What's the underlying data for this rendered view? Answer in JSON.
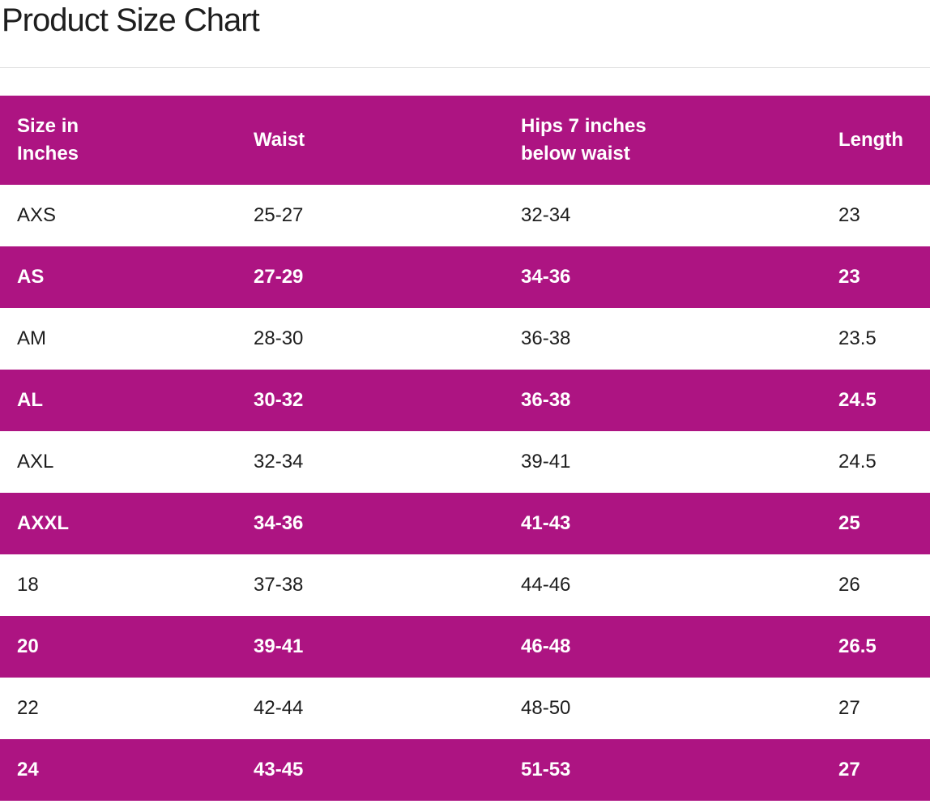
{
  "page": {
    "title": "Product Size Chart"
  },
  "table": {
    "headers": {
      "size": "Size in Inches",
      "waist": "Waist",
      "hips": "Hips 7 inches below waist",
      "length": "Length"
    },
    "rows": [
      {
        "size": "AXS",
        "waist": "25-27",
        "hips": "32-34",
        "length": "23"
      },
      {
        "size": "AS",
        "waist": "27-29",
        "hips": "34-36",
        "length": "23"
      },
      {
        "size": "AM",
        "waist": "28-30",
        "hips": "36-38",
        "length": "23.5"
      },
      {
        "size": "AL",
        "waist": "30-32",
        "hips": "36-38",
        "length": "24.5"
      },
      {
        "size": "AXL",
        "waist": "32-34",
        "hips": "39-41",
        "length": "24.5"
      },
      {
        "size": "AXXL",
        "waist": "34-36",
        "hips": "41-43",
        "length": "25"
      },
      {
        "size": "18",
        "waist": "37-38",
        "hips": "44-46",
        "length": "26"
      },
      {
        "size": "20",
        "waist": "39-41",
        "hips": "46-48",
        "length": "26.5"
      },
      {
        "size": "22",
        "waist": "42-44",
        "hips": "48-50",
        "length": "27"
      },
      {
        "size": "24",
        "waist": "43-45",
        "hips": "51-53",
        "length": "27"
      }
    ]
  },
  "colors": {
    "accent": "#ad1482",
    "text": "#1e1e1e",
    "header_text": "#ffffff",
    "divider": "#dedede"
  }
}
